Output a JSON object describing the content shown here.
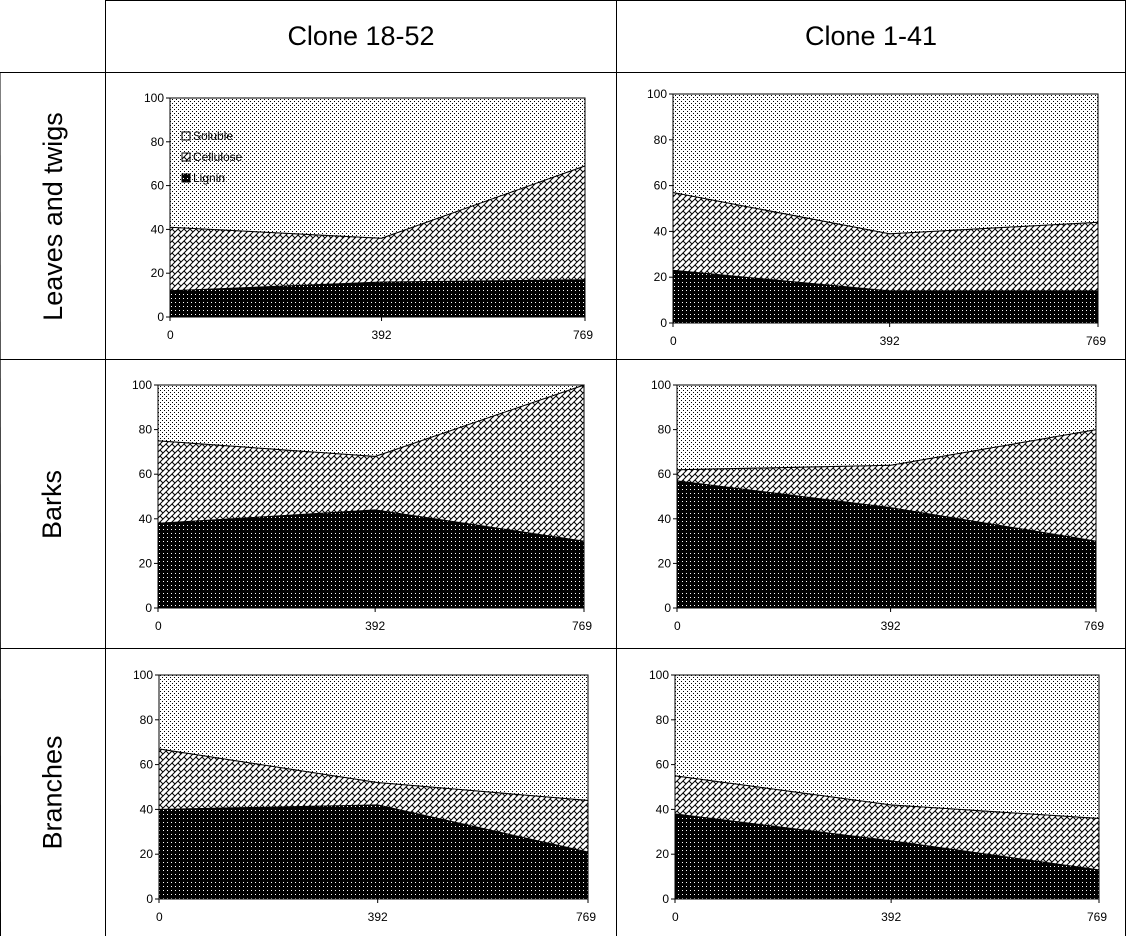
{
  "columns": [
    "Clone 18-52",
    "Clone 1-41"
  ],
  "rows": [
    "Leaves and twigs",
    "Barks",
    "Branches"
  ],
  "legend": [
    "Soluble",
    "Cellulose",
    "Lignin"
  ],
  "chart_data": [
    {
      "type": "area",
      "title": "",
      "row": "Leaves and twigs",
      "column": "Clone 18-52",
      "x": [
        0,
        392,
        769
      ],
      "ylim": [
        0,
        100
      ],
      "yticks": [
        0,
        20,
        40,
        60,
        80,
        100
      ],
      "show_legend": true,
      "legend_position": "top-left",
      "series": [
        {
          "name": "Lignin",
          "values": [
            12,
            16,
            17
          ]
        },
        {
          "name": "Cellulose",
          "values": [
            29,
            20,
            52
          ]
        },
        {
          "name": "Soluble",
          "values": [
            59,
            64,
            31
          ]
        }
      ]
    },
    {
      "type": "area",
      "title": "",
      "row": "Leaves and twigs",
      "column": "Clone 1-41",
      "x": [
        0,
        392,
        769
      ],
      "ylim": [
        0,
        100
      ],
      "yticks": [
        0,
        20,
        40,
        60,
        80,
        100
      ],
      "show_legend": false,
      "series": [
        {
          "name": "Lignin",
          "values": [
            23,
            14,
            14
          ]
        },
        {
          "name": "Cellulose",
          "values": [
            34,
            25,
            30
          ]
        },
        {
          "name": "Soluble",
          "values": [
            43,
            61,
            56
          ]
        }
      ]
    },
    {
      "type": "area",
      "title": "",
      "row": "Barks",
      "column": "Clone 18-52",
      "x": [
        0,
        392,
        769
      ],
      "ylim": [
        0,
        100
      ],
      "yticks": [
        0,
        20,
        40,
        60,
        80,
        100
      ],
      "show_legend": false,
      "series": [
        {
          "name": "Lignin",
          "values": [
            38,
            44,
            30
          ]
        },
        {
          "name": "Cellulose",
          "values": [
            37,
            24,
            70
          ]
        },
        {
          "name": "Soluble",
          "values": [
            25,
            32,
            0
          ]
        }
      ]
    },
    {
      "type": "area",
      "title": "",
      "row": "Barks",
      "column": "Clone 1-41",
      "x": [
        0,
        392,
        769
      ],
      "ylim": [
        0,
        100
      ],
      "yticks": [
        0,
        20,
        40,
        60,
        80,
        100
      ],
      "show_legend": false,
      "series": [
        {
          "name": "Lignin",
          "values": [
            57,
            45,
            30
          ]
        },
        {
          "name": "Cellulose",
          "values": [
            5,
            19,
            50
          ]
        },
        {
          "name": "Soluble",
          "values": [
            38,
            36,
            20
          ]
        }
      ]
    },
    {
      "type": "area",
      "title": "",
      "row": "Branches",
      "column": "Clone 18-52",
      "x": [
        0,
        392,
        769
      ],
      "ylim": [
        0,
        100
      ],
      "yticks": [
        0,
        20,
        40,
        60,
        80,
        100
      ],
      "show_legend": false,
      "series": [
        {
          "name": "Lignin",
          "values": [
            40,
            42,
            21
          ]
        },
        {
          "name": "Cellulose",
          "values": [
            27,
            10,
            23
          ]
        },
        {
          "name": "Soluble",
          "values": [
            33,
            48,
            56
          ]
        }
      ]
    },
    {
      "type": "area",
      "title": "",
      "row": "Branches",
      "column": "Clone 1-41",
      "x": [
        0,
        392,
        769
      ],
      "ylim": [
        0,
        100
      ],
      "yticks": [
        0,
        20,
        40,
        60,
        80,
        100
      ],
      "show_legend": false,
      "series": [
        {
          "name": "Lignin",
          "values": [
            38,
            26,
            13
          ]
        },
        {
          "name": "Cellulose",
          "values": [
            17,
            16,
            23
          ]
        },
        {
          "name": "Soluble",
          "values": [
            45,
            58,
            64
          ]
        }
      ]
    }
  ]
}
